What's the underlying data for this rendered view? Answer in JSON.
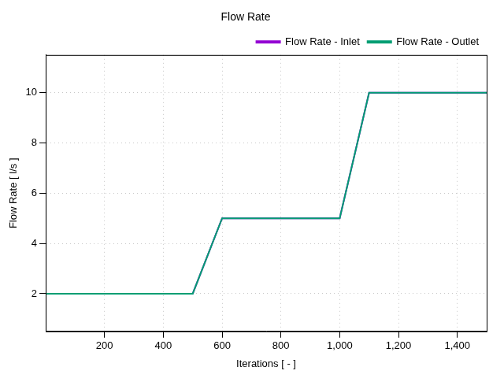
{
  "chart_data": {
    "type": "line",
    "title": "Flow Rate",
    "x_label": "Iterations [ - ]",
    "y_label": "Flow Rate [ l/s ]",
    "x": [
      0,
      500,
      600,
      1000,
      1100,
      1500
    ],
    "series": [
      {
        "name": "Flow Rate - Inlet",
        "color": "#9400d3",
        "values": [
          2,
          2,
          5,
          5,
          10,
          10
        ]
      },
      {
        "name": "Flow Rate - Outlet",
        "color": "#009e73",
        "values": [
          2,
          2,
          5,
          5,
          10,
          10
        ]
      }
    ],
    "xlim": [
      0,
      1500
    ],
    "xticks": [
      200,
      400,
      600,
      800,
      1000,
      1200,
      1400
    ],
    "ylim": [
      0.5,
      11.5
    ],
    "yticks": [
      2,
      4,
      6,
      8,
      10
    ],
    "grid": true,
    "legend": "top-right"
  }
}
